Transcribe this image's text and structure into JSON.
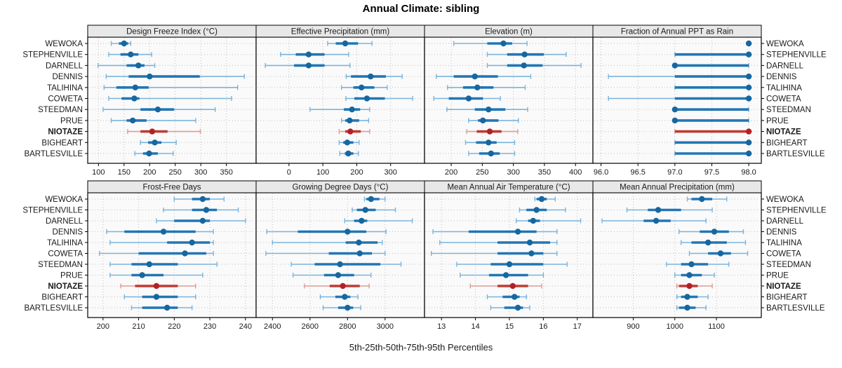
{
  "chart_data": {
    "type": "scatter",
    "subtype": "trellis-percentile-dotplot",
    "title": "Annual Climate: sibling",
    "caption": "5th-25th-50th-75th-95th Percentiles",
    "percentiles": [
      5,
      25,
      50,
      75,
      95
    ],
    "grid": "dotted",
    "legend_position": "none",
    "stations": [
      "WEWOKA",
      "STEPHENVILLE",
      "DARNELL",
      "DENNIS",
      "TALIHINA",
      "COWETA",
      "STEEDMAN",
      "PRUE",
      "NIOTAZE",
      "BIGHEART",
      "BARTLESVILLE"
    ],
    "highlight_station": "NIOTAZE",
    "panels": [
      {
        "name": "Design Freeze Index (°C)",
        "xlim": [
          79,
          408
        ],
        "tick_values": [
          100,
          150,
          200,
          250,
          300,
          350
        ],
        "tick_labels": [
          "100",
          "150",
          "200",
          "250",
          "300",
          "350"
        ],
        "values": [
          [
            125,
            140,
            150,
            158,
            163
          ],
          [
            120,
            143,
            163,
            178,
            204
          ],
          [
            99,
            155,
            178,
            190,
            210
          ],
          [
            115,
            159,
            200,
            298,
            385
          ],
          [
            111,
            135,
            172,
            198,
            372
          ],
          [
            120,
            145,
            170,
            180,
            360
          ],
          [
            109,
            182,
            216,
            248,
            328
          ],
          [
            125,
            155,
            167,
            194,
            290
          ],
          [
            157,
            182,
            205,
            235,
            299
          ],
          [
            182,
            197,
            210,
            223,
            252
          ],
          [
            171,
            187,
            199,
            216,
            246
          ]
        ]
      },
      {
        "name": "Effective Precipitation (mm)",
        "xlim": [
          -97,
          400
        ],
        "tick_values": [
          0,
          100,
          200,
          300
        ],
        "tick_labels": [
          "0",
          "100",
          "200",
          "300"
        ],
        "values": [
          [
            114,
            138,
            166,
            204,
            245
          ],
          [
            -25,
            20,
            58,
            105,
            176
          ],
          [
            -70,
            15,
            58,
            105,
            180
          ],
          [
            169,
            183,
            241,
            286,
            334
          ],
          [
            155,
            190,
            214,
            252,
            290
          ],
          [
            168,
            193,
            230,
            283,
            365
          ],
          [
            62,
            162,
            186,
            210,
            238
          ],
          [
            155,
            166,
            179,
            207,
            235
          ],
          [
            148,
            166,
            181,
            212,
            238
          ],
          [
            148,
            160,
            172,
            190,
            207
          ],
          [
            150,
            165,
            175,
            190,
            205
          ]
        ]
      },
      {
        "name": "Elevation (m)",
        "xlim": [
          157,
          428
        ],
        "tick_values": [
          200,
          250,
          300,
          350,
          400
        ],
        "tick_labels": [
          "200",
          "250",
          "300",
          "350",
          "400"
        ],
        "values": [
          [
            204,
            258,
            284,
            298,
            322
          ],
          [
            258,
            290,
            318,
            349,
            385
          ],
          [
            258,
            290,
            317,
            347,
            409
          ],
          [
            176,
            204,
            238,
            275,
            328
          ],
          [
            194,
            219,
            242,
            268,
            319
          ],
          [
            172,
            196,
            228,
            251,
            279
          ],
          [
            193,
            238,
            260,
            287,
            323
          ],
          [
            228,
            243,
            251,
            276,
            308
          ],
          [
            225,
            241,
            262,
            281,
            307
          ],
          [
            223,
            240,
            260,
            273,
            302
          ],
          [
            228,
            245,
            264,
            278,
            302
          ]
        ]
      },
      {
        "name": "Fraction of Annual PPT as Rain",
        "xlim": [
          95.89,
          98.17
        ],
        "tick_values": [
          96.0,
          96.5,
          97.0,
          97.5,
          98.0
        ],
        "tick_labels": [
          "96.0",
          "96.5",
          "97.0",
          "97.5",
          "98.0"
        ],
        "values": [
          [
            98,
            98,
            98,
            98,
            98
          ],
          [
            97,
            97,
            98,
            98,
            98
          ],
          [
            97,
            97,
            97,
            98,
            98
          ],
          [
            96.1,
            97,
            98,
            98,
            98
          ],
          [
            97,
            97,
            98,
            98,
            98
          ],
          [
            96.1,
            97,
            98,
            98,
            98
          ],
          [
            97,
            97,
            97,
            98,
            98
          ],
          [
            97,
            97,
            97,
            98,
            98
          ],
          [
            97,
            97,
            98,
            98,
            98
          ],
          [
            97,
            97,
            98,
            98,
            98
          ],
          [
            97,
            97,
            98,
            98,
            98
          ]
        ]
      },
      {
        "name": "Frost-Free Days",
        "xlim": [
          195.7,
          243
        ],
        "tick_values": [
          200,
          210,
          220,
          230,
          240
        ],
        "tick_labels": [
          "200",
          "210",
          "220",
          "230",
          "240"
        ],
        "values": [
          [
            220,
            225,
            228,
            230,
            234
          ],
          [
            217,
            225,
            229,
            232,
            238
          ],
          [
            215,
            220,
            228,
            230,
            240
          ],
          [
            201,
            206,
            217,
            226,
            231
          ],
          [
            202,
            218,
            225,
            230,
            231
          ],
          [
            199,
            210,
            223,
            229,
            231
          ],
          [
            202,
            208,
            213,
            221,
            232
          ],
          [
            202,
            208,
            211,
            217,
            228
          ],
          [
            205,
            209,
            215,
            221,
            226
          ],
          [
            206,
            211,
            215,
            221,
            226
          ],
          [
            208,
            211,
            218,
            221,
            225
          ]
        ]
      },
      {
        "name": "Growing Degree Days (°C)",
        "xlim": [
          2313,
          3210
        ],
        "tick_values": [
          2400,
          2600,
          2800,
          3000
        ],
        "tick_labels": [
          "2400",
          "2600",
          "2800",
          "3000"
        ],
        "values": [
          [
            2890,
            2900,
            2925,
            2970,
            3000
          ],
          [
            2825,
            2850,
            2895,
            2950,
            3055
          ],
          [
            2785,
            2835,
            2875,
            2905,
            3145
          ],
          [
            2370,
            2535,
            2800,
            2900,
            3005
          ],
          [
            2400,
            2790,
            2860,
            2960,
            2985
          ],
          [
            2365,
            2700,
            2865,
            2930,
            3000
          ],
          [
            2500,
            2625,
            2760,
            2975,
            3085
          ],
          [
            2510,
            2675,
            2750,
            2835,
            2925
          ],
          [
            2570,
            2705,
            2775,
            2865,
            2915
          ],
          [
            2655,
            2735,
            2785,
            2815,
            2855
          ],
          [
            2670,
            2750,
            2800,
            2830,
            2870
          ]
        ]
      },
      {
        "name": "Mean Annual Air Temperature (°C)",
        "xlim": [
          12.5,
          17.46
        ],
        "tick_values": [
          13,
          14,
          15,
          16,
          17
        ],
        "tick_labels": [
          "13",
          "14",
          "15",
          "16",
          "17"
        ],
        "values": [
          [
            15.75,
            15.8,
            15.95,
            16.1,
            16.35
          ],
          [
            15.3,
            15.5,
            15.8,
            16.1,
            16.65
          ],
          [
            15.2,
            15.55,
            15.7,
            15.9,
            17.1
          ],
          [
            12.75,
            13.8,
            15.25,
            15.8,
            16.4
          ],
          [
            12.95,
            14.65,
            15.6,
            16.2,
            16.4
          ],
          [
            12.7,
            14.65,
            15.65,
            16.0,
            16.4
          ],
          [
            13.45,
            14.45,
            15.0,
            16.0,
            16.7
          ],
          [
            13.55,
            14.4,
            14.9,
            15.55,
            16.0
          ],
          [
            13.85,
            14.65,
            15.1,
            15.55,
            15.95
          ],
          [
            14.35,
            14.8,
            15.15,
            15.3,
            15.5
          ],
          [
            14.45,
            14.85,
            15.25,
            15.4,
            15.6
          ]
        ]
      },
      {
        "name": "Mean Annual Precipitation (mm)",
        "xlim": [
          803,
          1208
        ],
        "tick_values": [
          900,
          1000,
          1100
        ],
        "tick_labels": [
          "900",
          "1000",
          "1100"
        ],
        "values": [
          [
            1030,
            1040,
            1065,
            1090,
            1125
          ],
          [
            885,
            935,
            960,
            1015,
            1090
          ],
          [
            825,
            925,
            955,
            990,
            1075
          ],
          [
            1010,
            1060,
            1095,
            1130,
            1165
          ],
          [
            1015,
            1040,
            1080,
            1125,
            1170
          ],
          [
            1035,
            1080,
            1110,
            1135,
            1175
          ],
          [
            980,
            1015,
            1040,
            1080,
            1130
          ],
          [
            1000,
            1015,
            1035,
            1065,
            1095
          ],
          [
            1005,
            1010,
            1035,
            1055,
            1090
          ],
          [
            1005,
            1015,
            1030,
            1055,
            1080
          ],
          [
            1005,
            1010,
            1030,
            1050,
            1075
          ]
        ]
      }
    ]
  },
  "colors": {
    "blue_dot": "#16679f",
    "blue_box": "#2176b5",
    "blue_whisker": "#7ab4dc",
    "red_dot": "#b42025",
    "red_box": "#c13a32",
    "red_whisker": "#e09a93",
    "panel_bg": "#fafafa",
    "header_bg": "#e8e8e8",
    "grid": "#bfbfbf",
    "border": "#000000",
    "text": "#1a1a1a"
  }
}
